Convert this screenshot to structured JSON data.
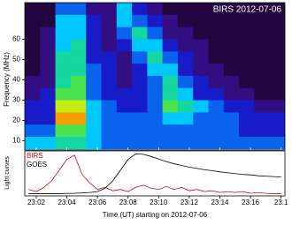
{
  "chart_data": [
    {
      "type": "heatmap",
      "title": "BIRS 2012-07-06",
      "ylabel": "Frequency (MHz)",
      "x": [
        1.75,
        2.75,
        3.75,
        4.75,
        5.75,
        6.75,
        7.75,
        8.75,
        9.75,
        10.75,
        11.75,
        12.75,
        13.75,
        14.75,
        15.75,
        16.75,
        17.75
      ],
      "y": [
        75,
        69,
        63,
        57,
        51,
        45,
        39,
        33,
        27,
        21,
        15,
        9
      ],
      "z": [
        [
          0.1,
          0.1,
          0.4,
          0.4,
          0.2,
          0.2,
          0.5,
          0.3,
          0.2,
          0.1,
          0.1,
          0.1,
          0.1,
          0.1,
          0.1,
          0.1,
          0.1
        ],
        [
          0.1,
          0.1,
          0.5,
          0.5,
          0.3,
          0.2,
          0.5,
          0.4,
          0.3,
          0.2,
          0.1,
          0.1,
          0.1,
          0.1,
          0.1,
          0.1,
          0.1
        ],
        [
          0.1,
          0.2,
          0.5,
          0.5,
          0.3,
          0.2,
          0.4,
          0.6,
          0.4,
          0.2,
          0.2,
          0.1,
          0.1,
          0.1,
          0.1,
          0.1,
          0.1
        ],
        [
          0.1,
          0.2,
          0.5,
          0.6,
          0.3,
          0.2,
          0.3,
          0.5,
          0.5,
          0.3,
          0.2,
          0.2,
          0.1,
          0.1,
          0.1,
          0.1,
          0.1
        ],
        [
          0.1,
          0.2,
          0.6,
          0.6,
          0.3,
          0.3,
          0.2,
          0.4,
          0.6,
          0.4,
          0.3,
          0.2,
          0.1,
          0.1,
          0.1,
          0.1,
          0.1
        ],
        [
          0.1,
          0.2,
          0.6,
          0.6,
          0.4,
          0.3,
          0.2,
          0.3,
          0.5,
          0.5,
          0.3,
          0.2,
          0.2,
          0.1,
          0.1,
          0.1,
          0.1
        ],
        [
          0.2,
          0.2,
          0.6,
          0.7,
          0.4,
          0.3,
          0.2,
          0.3,
          0.4,
          0.6,
          0.4,
          0.3,
          0.2,
          0.2,
          0.1,
          0.1,
          0.1
        ],
        [
          0.2,
          0.3,
          0.7,
          0.7,
          0.4,
          0.3,
          0.3,
          0.3,
          0.4,
          0.6,
          0.5,
          0.3,
          0.3,
          0.2,
          0.2,
          0.1,
          0.1
        ],
        [
          0.3,
          0.3,
          0.8,
          0.8,
          0.5,
          0.4,
          0.3,
          0.3,
          0.4,
          0.7,
          0.6,
          0.5,
          0.4,
          0.3,
          0.3,
          0.2,
          0.2
        ],
        [
          0.3,
          0.3,
          0.9,
          0.9,
          0.5,
          0.4,
          0.4,
          0.4,
          0.4,
          0.5,
          0.5,
          0.4,
          0.4,
          0.4,
          0.3,
          0.3,
          0.3
        ],
        [
          0.4,
          0.4,
          0.7,
          0.7,
          0.5,
          0.4,
          0.4,
          0.4,
          0.4,
          0.4,
          0.4,
          0.4,
          0.4,
          0.4,
          0.3,
          0.3,
          0.3
        ],
        [
          0.5,
          0.5,
          0.6,
          0.6,
          0.5,
          0.4,
          0.4,
          0.4,
          0.4,
          0.4,
          0.4,
          0.4,
          0.4,
          0.4,
          0.4,
          0.4,
          0.4
        ]
      ],
      "zlim": [
        0,
        1
      ],
      "colormap": [
        "#000000",
        "#3a0a6a",
        "#1020e0",
        "#00c8ff",
        "#20e060",
        "#f0f000",
        "#ff2000"
      ],
      "xlim": [
        1.25,
        18.25
      ],
      "ylim": [
        5.5,
        78
      ],
      "yticks": [
        10,
        20,
        30,
        40,
        50,
        60
      ]
    },
    {
      "type": "line",
      "ylabel": "Light curves",
      "xlabel": "Time (UT) starting on 2012-07-06",
      "x": [
        1.5,
        2,
        2.5,
        3,
        3.5,
        4,
        4.5,
        5,
        5.5,
        6,
        6.5,
        7,
        7.5,
        8,
        8.5,
        9,
        9.5,
        10,
        10.5,
        11,
        11.5,
        12,
        12.5,
        13,
        13.5,
        14,
        14.5,
        15,
        15.5,
        16,
        16.5,
        17,
        17.5,
        18
      ],
      "series": [
        {
          "name": "BIRS",
          "color": "#e00000",
          "values": [
            0.15,
            0.1,
            0.2,
            0.35,
            0.6,
            0.85,
            0.95,
            0.5,
            0.3,
            0.15,
            0.2,
            0.12,
            0.15,
            0.1,
            0.2,
            0.25,
            0.18,
            0.15,
            0.22,
            0.15,
            0.2,
            0.12,
            0.15,
            0.1,
            0.12,
            0.08,
            0.1,
            0.08,
            0.1,
            0.06,
            0.08,
            0.06,
            0.05,
            0.05
          ]
        },
        {
          "name": "GOES",
          "color": "#000000",
          "values": [
            0.05,
            0.05,
            0.05,
            0.05,
            0.05,
            0.06,
            0.06,
            0.07,
            0.08,
            0.1,
            0.18,
            0.35,
            0.6,
            0.85,
            0.98,
            0.97,
            0.92,
            0.86,
            0.8,
            0.75,
            0.71,
            0.67,
            0.64,
            0.61,
            0.59,
            0.56,
            0.54,
            0.52,
            0.5,
            0.49,
            0.47,
            0.46,
            0.45,
            0.44
          ]
        }
      ],
      "xlim": [
        1.25,
        18.25
      ],
      "ylim": [
        0,
        1.05
      ],
      "xticks": [
        {
          "value": 2,
          "label": "23:02"
        },
        {
          "value": 4,
          "label": "23:04"
        },
        {
          "value": 6,
          "label": "23:06"
        },
        {
          "value": 8,
          "label": "23:08"
        },
        {
          "value": 10,
          "label": "23:10"
        },
        {
          "value": 12,
          "label": "23:12"
        },
        {
          "value": 14,
          "label": "23:14"
        },
        {
          "value": 16,
          "label": "23:16"
        },
        {
          "value": 18,
          "label": "23:1"
        }
      ]
    }
  ]
}
